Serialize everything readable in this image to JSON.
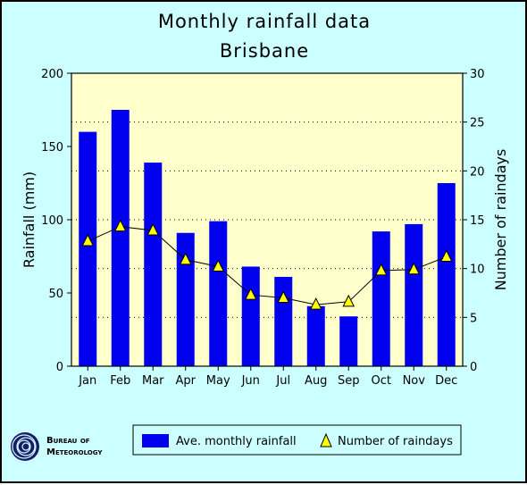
{
  "chart_data": {
    "type": "bar",
    "title": "Monthly rainfall data",
    "subtitle": "Brisbane",
    "xlabel": "",
    "ylabel": "Rainfall (mm)",
    "y2label": "Number of raindays",
    "categories": [
      "Jan",
      "Feb",
      "Mar",
      "Apr",
      "May",
      "Jun",
      "Jul",
      "Aug",
      "Sep",
      "Oct",
      "Nov",
      "Dec"
    ],
    "ylim": [
      0,
      200
    ],
    "y2lim": [
      0,
      30
    ],
    "yticks": [
      0,
      50,
      100,
      150,
      200
    ],
    "y2ticks": [
      0,
      5,
      10,
      15,
      20,
      25,
      30
    ],
    "grid": true,
    "series": [
      {
        "name": "Ave. monthly rainfall",
        "type": "bar",
        "axis": "left",
        "color": "#0000ee",
        "values": [
          160,
          175,
          139,
          91,
          99,
          68,
          61,
          41,
          34,
          92,
          97,
          125
        ]
      },
      {
        "name": "Number of raindays",
        "type": "line",
        "axis": "right",
        "color": "#000000",
        "marker": "triangle",
        "marker_color": "#ffff00",
        "values": [
          12.8,
          14.3,
          13.9,
          10.9,
          10.2,
          7.3,
          7.0,
          6.3,
          6.6,
          9.8,
          9.9,
          11.2
        ]
      }
    ],
    "legend_placement": "bottom"
  },
  "logo": {
    "line1": "Bureau of",
    "line2": "Meteorology"
  },
  "colors": {
    "background": "#ccffff",
    "plot_area": "#ffffcc",
    "bar": "#0000ee",
    "marker": "#ffff00"
  }
}
